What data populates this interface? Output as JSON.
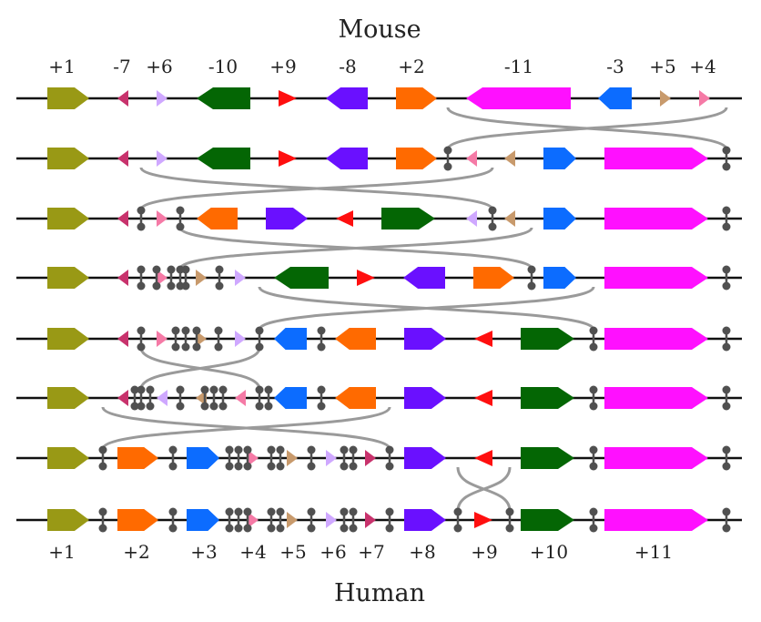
{
  "top_label": "Mouse",
  "bottom_label": "Human",
  "top_numbers": [
    "+1",
    "-7",
    "+6",
    "-10",
    "+9",
    "-8",
    "+2",
    "-11",
    "-3",
    "+5",
    "+4"
  ],
  "bottom_numbers": [
    "+1",
    "+2",
    "+3",
    "+4",
    "+5",
    "+6",
    "+7",
    "+8",
    "+9",
    "+10",
    "+11"
  ],
  "colors": {
    "1": "#999915",
    "2": "#ff6a00",
    "3": "#0c6cff",
    "4": "#f57aa6",
    "5": "#c89a6c",
    "6": "#cfa8ff",
    "7": "#c8326c",
    "8": "#6a10ff",
    "9": "#ff0f0f",
    "10": "#046604",
    "11": "#ff10ff",
    "line": "#111111",
    "telomere": "#505050",
    "arc": "#9a9a9a"
  }
}
